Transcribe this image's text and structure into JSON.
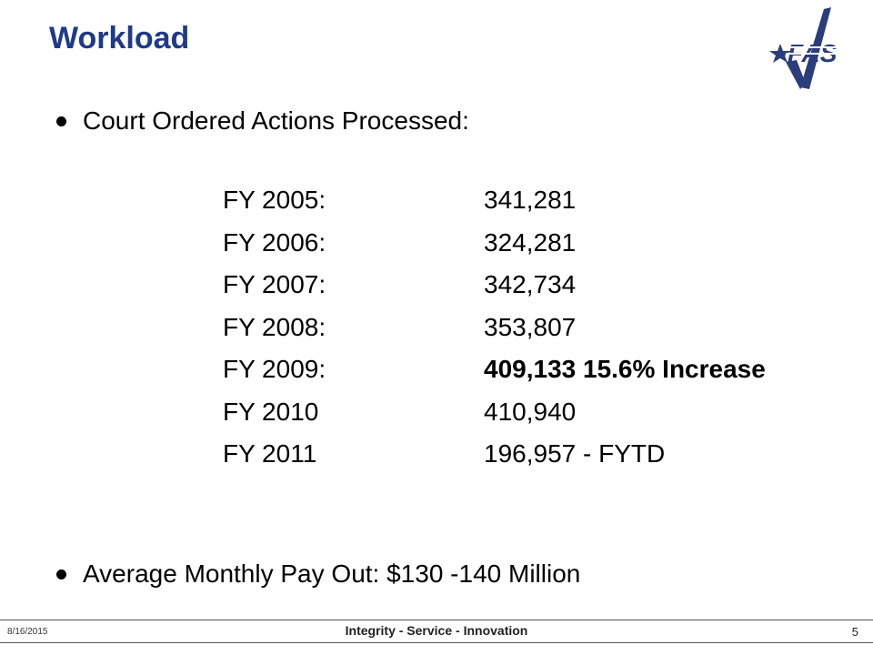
{
  "title": "Workload",
  "logo": {
    "text": "DFAS",
    "colors": {
      "primary": "#2b3d7a",
      "stripe": "#ffffff"
    }
  },
  "bullets": [
    {
      "text": "Court Ordered Actions Processed:"
    },
    {
      "text": "Average Monthly Pay Out:  $130 -140 Million"
    }
  ],
  "fiscal_years": [
    {
      "label": "FY 2005:",
      "value": "341,281"
    },
    {
      "label": "FY 2006:",
      "value": "324,281"
    },
    {
      "label": "FY 2007:",
      "value": "342,734"
    },
    {
      "label": "FY 2008:",
      "value": "353,807"
    },
    {
      "label": "FY 2009:",
      "value": "409,133  15.6% Increase",
      "emphasis": true
    },
    {
      "label": "FY 2010",
      "value": "410,940"
    },
    {
      "label": "FY 2011",
      "value": "196,957 - FYTD"
    }
  ],
  "footer": {
    "date": "8/16/2015",
    "center": "Integrity - Service - Innovation",
    "page": "5"
  },
  "colors": {
    "title": "#1f3a8a",
    "text": "#000000"
  }
}
